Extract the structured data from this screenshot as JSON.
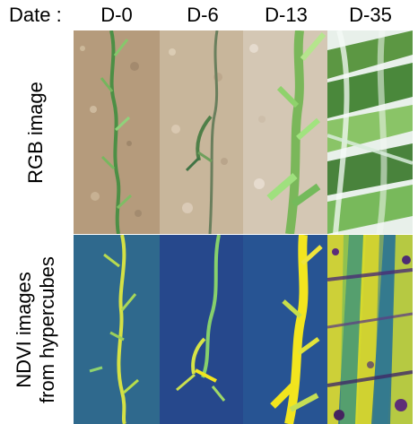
{
  "header": {
    "date_label": "Date :",
    "columns": [
      "D-0",
      "D-6",
      "D-13",
      "D-35"
    ]
  },
  "rows": [
    {
      "label": "RGB image"
    },
    {
      "label_line1": "NDVI images",
      "label_line2": "from hypercubes"
    }
  ],
  "colors": {
    "soil": "#b99f7f",
    "soil_light": "#d9c9ad",
    "leaf_green": "#4f8f44",
    "leaf_bright": "#9fe07e",
    "ndvi_low": "#35347e",
    "ndvi_mid": "#2b7f96",
    "ndvi_high": "#f2e51f"
  }
}
